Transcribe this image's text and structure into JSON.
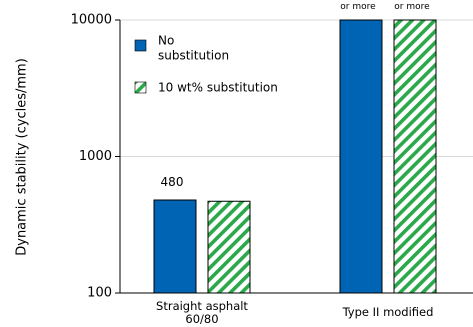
{
  "chart_data": {
    "type": "bar",
    "y_scale": "log",
    "ylim": [
      100,
      10000
    ],
    "yticks": [
      100,
      1000,
      10000
    ],
    "ytick_labels": [
      "100",
      "1000",
      "10000"
    ],
    "ylabel": "Dynamic stability (cycles/mm)",
    "xlabel": "",
    "grid": "horizontal",
    "categories": [
      {
        "line1": "Straight asphalt",
        "line2": "60/80"
      },
      {
        "line1": "Type II modified",
        "line2": ""
      }
    ],
    "series": [
      {
        "name_line1": "No",
        "name_line2": "substitution",
        "values": [
          480,
          10000
        ],
        "color": "#0064b4",
        "pattern": "solid"
      },
      {
        "name_line1": "10 wt% substitution",
        "name_line2": "",
        "values": [
          470,
          10000
        ],
        "color": "#2aa84a",
        "pattern": "hatch"
      }
    ],
    "annotations": [
      {
        "text": "480",
        "category": 0,
        "series": 0,
        "value": 480
      },
      {
        "text": "or more",
        "category": 1,
        "series": 0,
        "value": 10000
      },
      {
        "text": "or more",
        "category": 1,
        "series": 1,
        "value": 10000
      }
    ],
    "legend_position": "top-left"
  },
  "colors": {
    "axis": "#000000",
    "grid": "#d9d9d9"
  }
}
